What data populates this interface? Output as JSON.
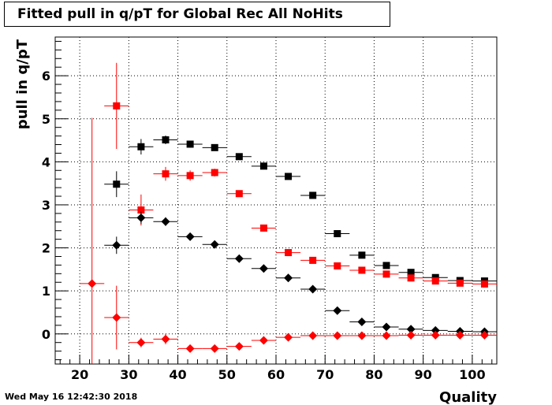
{
  "chart_data": {
    "type": "scatter",
    "title": "Fitted pull in q/pT for Global Rec All NoHits",
    "xlabel": "Quality",
    "ylabel": "pull in q/pT",
    "xlim": [
      15,
      105
    ],
    "ylim": [
      -0.7,
      6.9
    ],
    "xticks": [
      "20",
      "30",
      "40",
      "50",
      "60",
      "70",
      "80",
      "90",
      "100"
    ],
    "yticks": [
      "0",
      "1",
      "2",
      "3",
      "4",
      "5",
      "6"
    ],
    "grid": true,
    "bin_half_width": 2.5,
    "series": [
      {
        "marker": "square",
        "color": "#000000",
        "x": [
          27.5,
          32.5,
          37.5,
          42.5,
          47.5,
          52.5,
          57.5,
          62.5,
          67.5,
          72.5,
          77.5,
          82.5,
          87.5,
          92.5,
          97.5,
          102.5
        ],
        "y": [
          3.48,
          4.35,
          4.51,
          4.41,
          4.33,
          4.12,
          3.9,
          3.66,
          3.22,
          2.33,
          1.83,
          1.59,
          1.43,
          1.31,
          1.24,
          1.23
        ],
        "err": [
          0.3,
          0.18,
          0.1,
          0.08,
          0.06,
          0.05,
          0.05,
          0.04,
          0.04,
          0.04,
          0.03,
          0.03,
          0.03,
          0.03,
          0.03,
          0.03
        ]
      },
      {
        "marker": "square",
        "color": "#ff0000",
        "x": [
          27.5,
          32.5,
          37.5,
          42.5,
          47.5,
          52.5,
          57.5,
          62.5,
          67.5,
          72.5,
          77.5,
          82.5,
          87.5,
          92.5,
          97.5,
          102.5
        ],
        "y": [
          5.3,
          2.88,
          3.72,
          3.68,
          3.75,
          3.26,
          2.46,
          1.89,
          1.71,
          1.58,
          1.48,
          1.39,
          1.3,
          1.23,
          1.18,
          1.16
        ],
        "err": [
          1.0,
          0.36,
          0.16,
          0.12,
          0.09,
          0.07,
          0.05,
          0.04,
          0.04,
          0.03,
          0.03,
          0.03,
          0.03,
          0.03,
          0.03,
          0.03
        ]
      },
      {
        "marker": "diamond",
        "color": "#000000",
        "x": [
          27.5,
          32.5,
          37.5,
          42.5,
          47.5,
          52.5,
          57.5,
          62.5,
          67.5,
          72.5,
          77.5,
          82.5,
          87.5,
          92.5,
          97.5,
          102.5
        ],
        "y": [
          2.06,
          2.7,
          2.61,
          2.26,
          2.08,
          1.75,
          1.52,
          1.3,
          1.04,
          0.54,
          0.28,
          0.16,
          0.11,
          0.08,
          0.06,
          0.05
        ],
        "err": [
          0.2,
          0.14,
          0.1,
          0.06,
          0.05,
          0.04,
          0.04,
          0.03,
          0.03,
          0.03,
          0.02,
          0.02,
          0.02,
          0.02,
          0.02,
          0.02
        ]
      },
      {
        "marker": "diamond",
        "color": "#ff0000",
        "x": [
          22.5,
          27.5,
          32.5,
          37.5,
          42.5,
          47.5,
          52.5,
          57.5,
          62.5,
          67.5,
          72.5,
          77.5,
          82.5,
          87.5,
          92.5,
          97.5,
          102.5
        ],
        "y": [
          1.17,
          0.38,
          -0.2,
          -0.12,
          -0.34,
          -0.34,
          -0.29,
          -0.15,
          -0.08,
          -0.04,
          -0.04,
          -0.04,
          -0.04,
          -0.03,
          -0.03,
          -0.03,
          -0.03
        ],
        "err": [
          3.85,
          0.74,
          0.11,
          0.12,
          0.05,
          0.04,
          0.03,
          0.02,
          0.02,
          0.02,
          0.02,
          0.02,
          0.02,
          0.02,
          0.02,
          0.02,
          0.02
        ]
      }
    ]
  },
  "footer": {
    "timestamp": "Wed May 16 12:42:30 2018"
  }
}
